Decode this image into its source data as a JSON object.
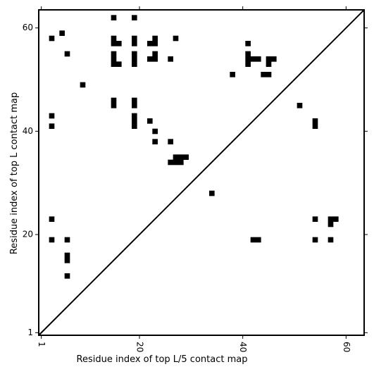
{
  "chart_data": {
    "type": "heatmap",
    "title": "",
    "xlabel": "Residue index of top L/5 contact map",
    "ylabel": "Residue index of top L contact map",
    "xlim": [
      0.5,
      63.5
    ],
    "ylim": [
      0.5,
      63.5
    ],
    "x_ticks": [
      1,
      20,
      40,
      60
    ],
    "y_ticks": [
      1,
      20,
      40,
      60
    ],
    "x_tick_labels": [
      "1",
      "20",
      "40",
      "60"
    ],
    "y_tick_labels": [
      "1",
      "20",
      "40",
      "60"
    ],
    "diagonal": true,
    "cell_color": "#000000",
    "background": "#ffffff",
    "upper_contacts": [
      [
        15,
        62
      ],
      [
        19,
        62
      ],
      [
        5,
        59
      ],
      [
        3,
        58
      ],
      [
        15,
        58
      ],
      [
        19,
        58
      ],
      [
        23,
        58
      ],
      [
        27,
        58
      ],
      [
        15,
        57
      ],
      [
        16,
        57
      ],
      [
        19,
        57
      ],
      [
        22,
        57
      ],
      [
        23,
        57
      ],
      [
        41,
        57
      ],
      [
        6,
        55
      ],
      [
        15,
        55
      ],
      [
        19,
        55
      ],
      [
        23,
        55
      ],
      [
        41,
        55
      ],
      [
        15,
        54
      ],
      [
        19,
        54
      ],
      [
        22,
        54
      ],
      [
        23,
        54
      ],
      [
        26,
        54
      ],
      [
        41,
        54
      ],
      [
        42,
        54
      ],
      [
        43,
        54
      ],
      [
        45,
        54
      ],
      [
        46,
        54
      ],
      [
        15,
        53
      ],
      [
        16,
        53
      ],
      [
        19,
        53
      ],
      [
        41,
        53
      ],
      [
        45,
        53
      ],
      [
        38,
        51
      ],
      [
        44,
        51
      ],
      [
        45,
        51
      ],
      [
        9,
        49
      ],
      [
        15,
        46
      ],
      [
        19,
        46
      ],
      [
        15,
        45
      ],
      [
        19,
        45
      ],
      [
        51,
        45
      ],
      [
        3,
        43
      ],
      [
        19,
        43
      ],
      [
        19,
        42
      ],
      [
        22,
        42
      ],
      [
        54,
        42
      ],
      [
        3,
        41
      ],
      [
        19,
        41
      ],
      [
        54,
        41
      ],
      [
        23,
        40
      ],
      [
        23,
        38
      ],
      [
        26,
        38
      ],
      [
        27,
        35
      ],
      [
        28,
        35
      ],
      [
        29,
        35
      ],
      [
        27,
        34
      ],
      [
        28,
        34
      ],
      [
        26,
        34
      ],
      [
        34,
        28
      ]
    ],
    "lower_contacts": [
      [
        3,
        23
      ],
      [
        54,
        23
      ],
      [
        57,
        23
      ],
      [
        58,
        23
      ],
      [
        57,
        22
      ],
      [
        3,
        19
      ],
      [
        6,
        19
      ],
      [
        42,
        19
      ],
      [
        43,
        19
      ],
      [
        54,
        19
      ],
      [
        57,
        19
      ],
      [
        6,
        16
      ],
      [
        6,
        15
      ],
      [
        6,
        12
      ]
    ]
  }
}
